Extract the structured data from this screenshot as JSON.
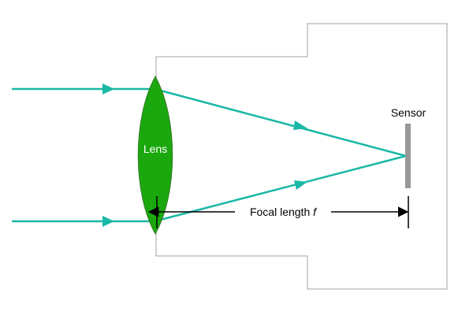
{
  "labels": {
    "lens": "Lens",
    "sensor": "Sensor",
    "focal_length_prefix": "Focal length ",
    "focal_length_symbol": "f"
  },
  "colors": {
    "ray": "#1ab8a6",
    "lens_fill": "#1aa80e",
    "lens_stroke": "#3a7a2a",
    "sensor": "#999999",
    "body_outline": "#a0a0a0",
    "dimension": "#000000"
  }
}
